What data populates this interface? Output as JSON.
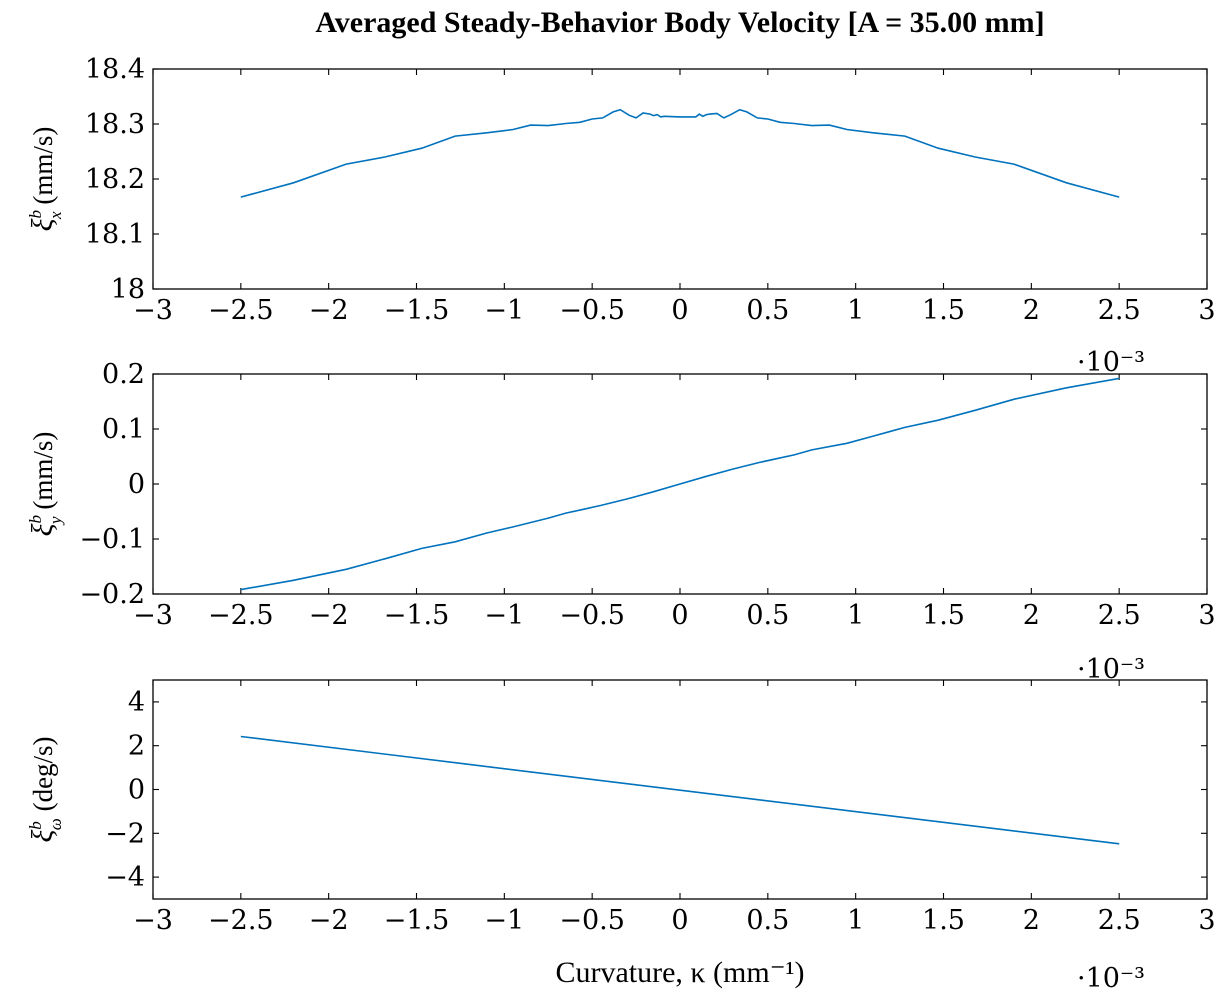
{
  "title": "Averaged Steady-Behavior Body Velocity [A = 35.00 mm]",
  "xlabel": "Curvature, κ (mm⁻¹)",
  "x_multiplier": "·10⁻³",
  "chart_data": [
    {
      "type": "line",
      "ylabel": "ξxb (mm/s)",
      "ylabel_symbol": "ξ",
      "ylabel_sup": "b",
      "ylabel_sub": "x",
      "ylabel_unit": "(mm/s)",
      "xlim": [
        -3,
        3
      ],
      "ylim": [
        18,
        18.4
      ],
      "xticks": [
        -3,
        -2.5,
        -2,
        -1.5,
        -1,
        -0.5,
        0,
        0.5,
        1,
        1.5,
        2,
        2.5,
        3
      ],
      "xtick_labels": [
        "−3",
        "−2.5",
        "−2",
        "−1.5",
        "−1",
        "−0.5",
        "0",
        "0.5",
        "1",
        "1.5",
        "2",
        "2.5",
        "3"
      ],
      "yticks": [
        18,
        18.1,
        18.2,
        18.3,
        18.4
      ],
      "ytick_labels": [
        "18",
        "18.1",
        "18.2",
        "18.3",
        "18.4"
      ],
      "x_multiplier": "·10⁻³",
      "series": [
        {
          "name": "xi_x",
          "x": [
            -2.5,
            -2.2,
            -1.9,
            -1.68,
            -1.47,
            -1.28,
            -1.1,
            -0.95,
            -0.85,
            -0.75,
            -0.65,
            -0.57,
            -0.5,
            -0.44,
            -0.38,
            -0.34,
            -0.29,
            -0.25,
            -0.21,
            -0.17,
            -0.15,
            -0.13,
            -0.11,
            -0.09,
            0,
            0.09,
            0.11,
            0.13,
            0.15,
            0.17,
            0.21,
            0.25,
            0.29,
            0.34,
            0.38,
            0.44,
            0.5,
            0.57,
            0.65,
            0.75,
            0.85,
            0.95,
            1.1,
            1.28,
            1.47,
            1.68,
            1.9,
            2.2,
            2.5
          ],
          "y": [
            18.167,
            18.193,
            18.227,
            18.24,
            18.256,
            18.278,
            18.284,
            18.29,
            18.298,
            18.297,
            18.301,
            18.303,
            18.309,
            18.311,
            18.322,
            18.326,
            18.316,
            18.311,
            18.32,
            18.318,
            18.315,
            18.317,
            18.313,
            18.314,
            18.313,
            18.313,
            18.318,
            18.314,
            18.317,
            18.318,
            18.319,
            18.311,
            18.317,
            18.326,
            18.322,
            18.311,
            18.309,
            18.303,
            18.301,
            18.297,
            18.298,
            18.29,
            18.284,
            18.278,
            18.256,
            18.24,
            18.227,
            18.193,
            18.167
          ]
        }
      ]
    },
    {
      "type": "line",
      "ylabel": "ξyb (mm/s)",
      "ylabel_symbol": "ξ",
      "ylabel_sup": "b",
      "ylabel_sub": "y",
      "ylabel_unit": "(mm/s)",
      "xlim": [
        -3,
        3
      ],
      "ylim": [
        -0.2,
        0.2
      ],
      "xticks": [
        -3,
        -2.5,
        -2,
        -1.5,
        -1,
        -0.5,
        0,
        0.5,
        1,
        1.5,
        2,
        2.5,
        3
      ],
      "xtick_labels": [
        "−3",
        "−2.5",
        "−2",
        "−1.5",
        "−1",
        "−0.5",
        "0",
        "0.5",
        "1",
        "1.5",
        "2",
        "2.5",
        "3"
      ],
      "yticks": [
        -0.2,
        -0.1,
        0,
        0.1,
        0.2
      ],
      "ytick_labels": [
        "−0.2",
        "−0.1",
        "0",
        "0.1",
        "0.2"
      ],
      "x_multiplier": "·10⁻³",
      "series": [
        {
          "name": "xi_y",
          "x": [
            -2.5,
            -2.2,
            -1.9,
            -1.68,
            -1.47,
            -1.28,
            -1.1,
            -0.95,
            -0.75,
            -0.65,
            -0.55,
            -0.45,
            -0.3,
            -0.15,
            0,
            0.15,
            0.3,
            0.45,
            0.55,
            0.65,
            0.75,
            0.95,
            1.1,
            1.28,
            1.47,
            1.68,
            1.9,
            2.2,
            2.5
          ],
          "y": [
            -0.192,
            -0.175,
            -0.155,
            -0.136,
            -0.117,
            -0.105,
            -0.089,
            -0.078,
            -0.062,
            -0.053,
            -0.046,
            -0.039,
            -0.027,
            -0.014,
            0,
            0.014,
            0.027,
            0.039,
            0.046,
            0.053,
            0.062,
            0.074,
            0.087,
            0.103,
            0.116,
            0.134,
            0.154,
            0.175,
            0.192
          ]
        }
      ]
    },
    {
      "type": "line",
      "ylabel": "ξωb (deg/s)",
      "ylabel_symbol": "ξ",
      "ylabel_sup": "b",
      "ylabel_sub": "ω",
      "ylabel_unit": "(deg/s)",
      "xlim": [
        -3,
        3
      ],
      "ylim": [
        -5,
        5
      ],
      "xticks": [
        -3,
        -2.5,
        -2,
        -1.5,
        -1,
        -0.5,
        0,
        0.5,
        1,
        1.5,
        2,
        2.5,
        3
      ],
      "xtick_labels": [
        "−3",
        "−2.5",
        "−2",
        "−1.5",
        "−1",
        "−0.5",
        "0",
        "0.5",
        "1",
        "1.5",
        "2",
        "2.5",
        "3"
      ],
      "yticks": [
        -4,
        -2,
        0,
        2,
        4
      ],
      "ytick_labels": [
        "−4",
        "−2",
        "0",
        "2",
        "4"
      ],
      "x_multiplier": "·10⁻³",
      "series": [
        {
          "name": "xi_omega",
          "x": [
            -2.5,
            2.5
          ],
          "y": [
            2.42,
            -2.48
          ]
        }
      ]
    }
  ]
}
